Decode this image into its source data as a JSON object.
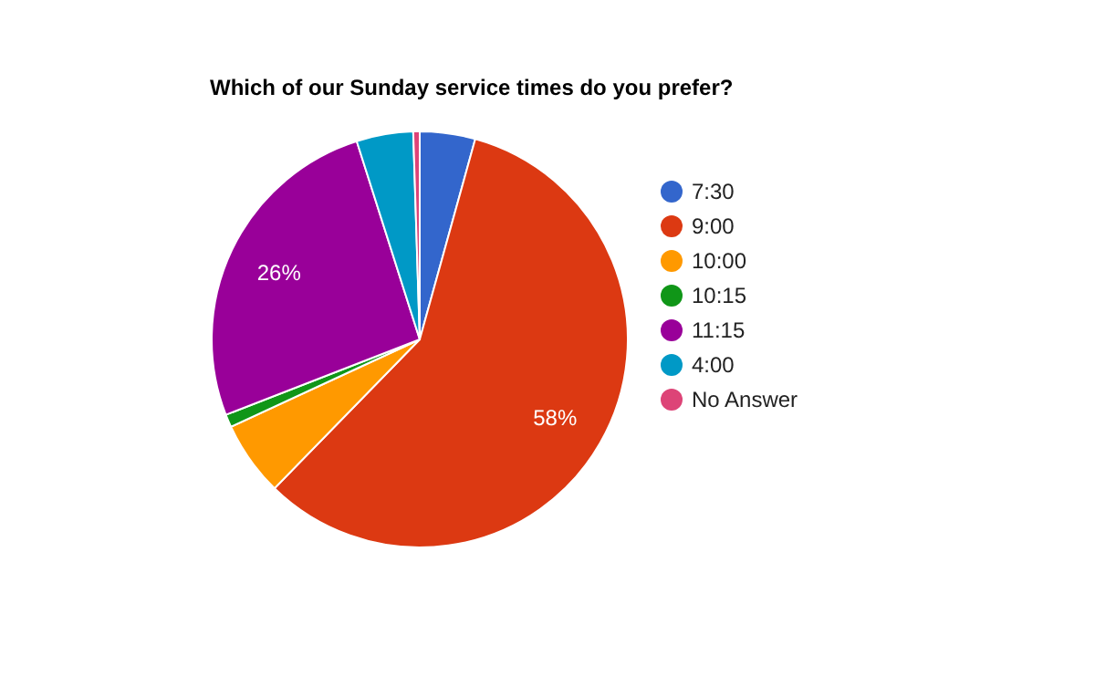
{
  "chart_data": {
    "type": "pie",
    "title": "Which of our Sunday service times do you prefer?",
    "categories": [
      "7:30",
      "9:00",
      "10:00",
      "10:15",
      "11:15",
      "4:00",
      "No Answer"
    ],
    "values": [
      4.3,
      58,
      5.8,
      1.0,
      26,
      4.4,
      0.5
    ],
    "colors": [
      "#3366cc",
      "#dc3912",
      "#ff9900",
      "#109618",
      "#990099",
      "#0099c6",
      "#dd4477"
    ],
    "value_labels": [
      null,
      "58%",
      null,
      null,
      "26%",
      null,
      null
    ],
    "legend": "right"
  }
}
